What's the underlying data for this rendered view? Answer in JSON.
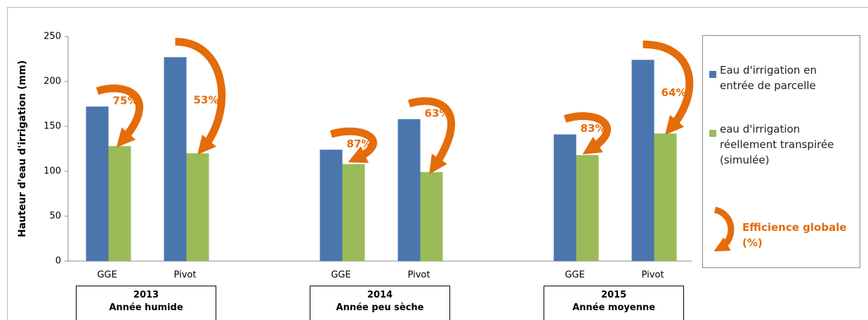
{
  "chart_data": {
    "type": "bar",
    "y_label": "Hauteur d'eau d'irrigation (mm)",
    "categories": [
      "GGE",
      "Pivot",
      null,
      "GGE",
      "Pivot",
      null,
      "GGE",
      "Pivot"
    ],
    "series": [
      {
        "name": "Eau d'irrigation en entrée de parcelle",
        "color": "#4a76ad",
        "values": [
          172,
          227,
          null,
          124,
          158,
          null,
          141,
          224
        ]
      },
      {
        "name": "eau d'irrigation réellement transpirée (simulée)",
        "color": "#9bbb59",
        "values": [
          128,
          120,
          null,
          108,
          99,
          null,
          118,
          142
        ]
      }
    ],
    "efficiency": {
      "name": "Efficience globale (%)",
      "color": "#e46c0a",
      "values": [
        75,
        53,
        null,
        87,
        63,
        null,
        83,
        64
      ],
      "value_labels": [
        "75%",
        "53%",
        null,
        "87%",
        "63%",
        null,
        "83%",
        "64%"
      ]
    },
    "groups": [
      {
        "year": "2013",
        "label": "Année humide"
      },
      {
        "year": "2014",
        "label": "Année peu sèche"
      },
      {
        "year": "2015",
        "label": "Année moyenne"
      }
    ],
    "ylim": [
      0,
      250
    ],
    "yticks": [
      0,
      50,
      100,
      150,
      200,
      250
    ],
    "grid": false,
    "legend": "right"
  }
}
